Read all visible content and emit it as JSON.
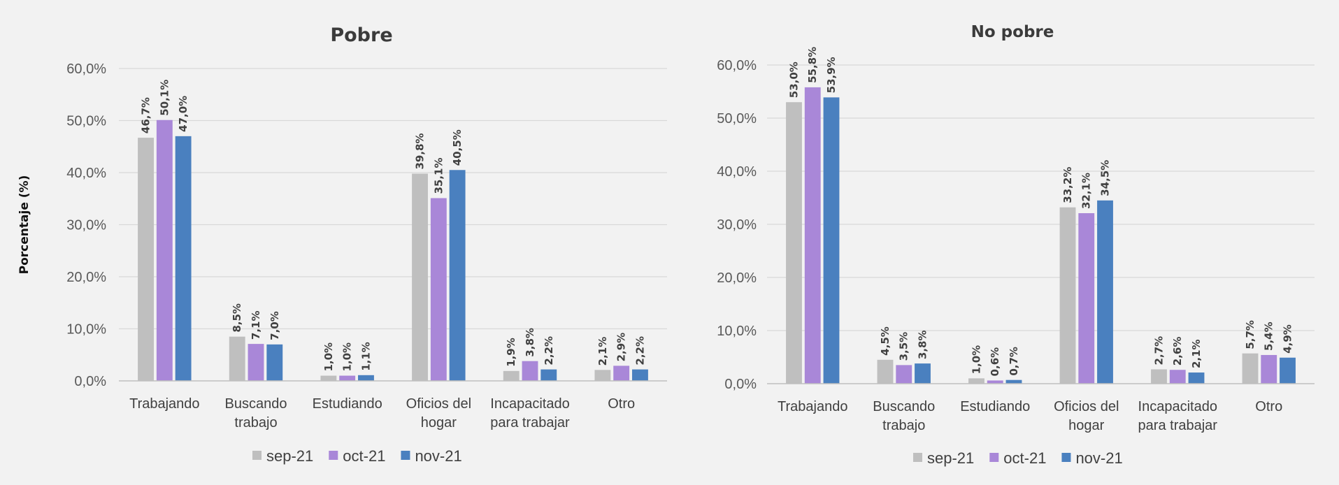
{
  "chart_data": [
    {
      "type": "bar",
      "title": "Pobre",
      "ylabel": "Porcentaje (%)",
      "xlabel": "",
      "ylim": [
        0,
        60
      ],
      "yticks": [
        "0,0%",
        "10,0%",
        "20,0%",
        "30,0%",
        "40,0%",
        "50,0%",
        "60,0%"
      ],
      "grid": true,
      "legend_position": "bottom",
      "categories": [
        [
          "Trabajando"
        ],
        [
          "Buscando",
          "trabajo"
        ],
        [
          "Estudiando"
        ],
        [
          "Oficios del",
          "hogar"
        ],
        [
          "Incapacitado",
          "para trabajar"
        ],
        [
          "Otro"
        ]
      ],
      "series": [
        {
          "name": "sep-21",
          "color": "#bfbfbf",
          "values": [
            46.7,
            8.5,
            1.0,
            39.8,
            1.9,
            2.1
          ],
          "labels": [
            "46,7%",
            "8,5%",
            "1,0%",
            "39,8%",
            "1,9%",
            "2,1%"
          ]
        },
        {
          "name": "oct-21",
          "color": "#a987d8",
          "values": [
            50.1,
            7.1,
            1.0,
            35.1,
            3.8,
            2.9
          ],
          "labels": [
            "50,1%",
            "7,1%",
            "1,0%",
            "35,1%",
            "3,8%",
            "2,9%"
          ]
        },
        {
          "name": "nov-21",
          "color": "#4a80bf",
          "values": [
            47.0,
            7.0,
            1.1,
            40.5,
            2.2,
            2.2
          ],
          "labels": [
            "47,0%",
            "7,0%",
            "1,1%",
            "40,5%",
            "2,2%",
            "2,2%"
          ]
        }
      ]
    },
    {
      "type": "bar",
      "title": "No pobre",
      "ylabel": "",
      "xlabel": "",
      "ylim": [
        0,
        60
      ],
      "yticks": [
        "0,0%",
        "10,0%",
        "20,0%",
        "30,0%",
        "40,0%",
        "50,0%",
        "60,0%"
      ],
      "grid": true,
      "legend_position": "bottom",
      "categories": [
        [
          "Trabajando"
        ],
        [
          "Buscando",
          "trabajo"
        ],
        [
          "Estudiando"
        ],
        [
          "Oficios del",
          "hogar"
        ],
        [
          "Incapacitado",
          "para trabajar"
        ],
        [
          "Otro"
        ]
      ],
      "series": [
        {
          "name": "sep-21",
          "color": "#bfbfbf",
          "values": [
            53.0,
            4.5,
            1.0,
            33.2,
            2.7,
            5.7
          ],
          "labels": [
            "53,0%",
            "4,5%",
            "1,0%",
            "33,2%",
            "2,7%",
            "5,7%"
          ]
        },
        {
          "name": "oct-21",
          "color": "#a987d8",
          "values": [
            55.8,
            3.5,
            0.6,
            32.1,
            2.6,
            5.4
          ],
          "labels": [
            "55,8%",
            "3,5%",
            "0,6%",
            "32,1%",
            "2,6%",
            "5,4%"
          ]
        },
        {
          "name": "nov-21",
          "color": "#4a80bf",
          "values": [
            53.9,
            3.8,
            0.7,
            34.5,
            2.1,
            4.9
          ],
          "labels": [
            "53,9%",
            "3,8%",
            "0,7%",
            "34,5%",
            "2,1%",
            "4,9%"
          ]
        }
      ]
    }
  ]
}
